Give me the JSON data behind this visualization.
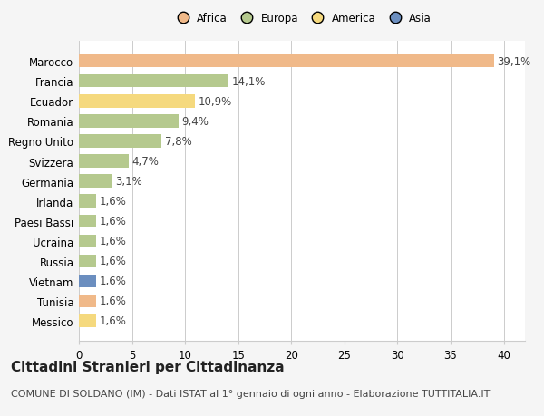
{
  "categories": [
    "Marocco",
    "Francia",
    "Ecuador",
    "Romania",
    "Regno Unito",
    "Svizzera",
    "Germania",
    "Irlanda",
    "Paesi Bassi",
    "Ucraina",
    "Russia",
    "Vietnam",
    "Tunisia",
    "Messico"
  ],
  "values": [
    39.1,
    14.1,
    10.9,
    9.4,
    7.8,
    4.7,
    3.1,
    1.6,
    1.6,
    1.6,
    1.6,
    1.6,
    1.6,
    1.6
  ],
  "labels": [
    "39,1%",
    "14,1%",
    "10,9%",
    "9,4%",
    "7,8%",
    "4,7%",
    "3,1%",
    "1,6%",
    "1,6%",
    "1,6%",
    "1,6%",
    "1,6%",
    "1,6%",
    "1,6%"
  ],
  "colors": [
    "#f0b989",
    "#b5c98e",
    "#f5d97e",
    "#b5c98e",
    "#b5c98e",
    "#b5c98e",
    "#b5c98e",
    "#b5c98e",
    "#b5c98e",
    "#b5c98e",
    "#b5c98e",
    "#6b8ebf",
    "#f0b989",
    "#f5d97e"
  ],
  "legend": [
    {
      "label": "Africa",
      "color": "#f0b989"
    },
    {
      "label": "Europa",
      "color": "#b5c98e"
    },
    {
      "label": "America",
      "color": "#f5d97e"
    },
    {
      "label": "Asia",
      "color": "#6b8ebf"
    }
  ],
  "title": "Cittadini Stranieri per Cittadinanza",
  "subtitle": "COMUNE DI SOLDANO (IM) - Dati ISTAT al 1° gennaio di ogni anno - Elaborazione TUTTITALIA.IT",
  "xlim": [
    0,
    42
  ],
  "xticks": [
    0,
    5,
    10,
    15,
    20,
    25,
    30,
    35,
    40
  ],
  "background_color": "#f5f5f5",
  "bar_bg_color": "#ffffff",
  "title_fontsize": 11,
  "subtitle_fontsize": 8,
  "label_fontsize": 8.5,
  "tick_fontsize": 8.5
}
